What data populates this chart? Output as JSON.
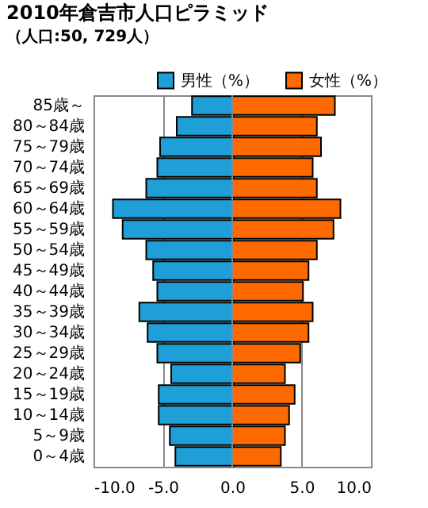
{
  "chart_data": {
    "type": "bar",
    "orientation": "horizontal",
    "title": "2010年倉吉市人口ピラミッド",
    "subtitle": "（人口:50, 729人）",
    "categories": [
      "85歳～",
      "80～84歳",
      "75～79歳",
      "70～74歳",
      "65～69歳",
      "60～64歳",
      "55～59歳",
      "50～54歳",
      "45～49歳",
      "40～44歳",
      "35～39歳",
      "30～34歳",
      "25～29歳",
      "20～24歳",
      "15～19歳",
      "10～14歳",
      "5～9歳",
      "0～4歳"
    ],
    "series": [
      {
        "name": "男性（%）",
        "color": "#1e9fd8",
        "values": [
          -2.9,
          -4.0,
          -5.2,
          -5.4,
          -6.2,
          -8.6,
          -7.9,
          -6.2,
          -5.7,
          -5.4,
          -6.7,
          -6.1,
          -5.4,
          -4.4,
          -5.3,
          -5.3,
          -4.5,
          -4.1
        ]
      },
      {
        "name": "女性（%）",
        "color": "#ff6a00",
        "values": [
          7.4,
          6.1,
          6.4,
          5.8,
          6.1,
          7.8,
          7.3,
          6.1,
          5.5,
          5.1,
          5.8,
          5.5,
          4.9,
          3.8,
          4.5,
          4.1,
          3.8,
          3.5
        ]
      }
    ],
    "xlim": [
      -10,
      10
    ],
    "xticks": [
      {
        "value": -10,
        "label": "-10.0"
      },
      {
        "value": -5,
        "label": "-5.0"
      },
      {
        "value": 0,
        "label": "0.0"
      },
      {
        "value": 5,
        "label": "5.0"
      },
      {
        "value": 10,
        "label": "10.0"
      }
    ],
    "grid": "x",
    "legend": "top right",
    "stacked": true
  }
}
